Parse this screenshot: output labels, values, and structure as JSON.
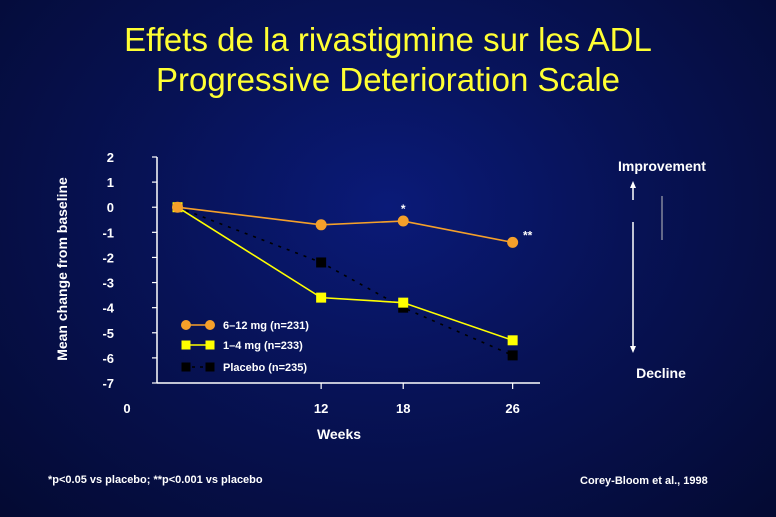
{
  "header": {
    "title_line1": "Effets de la rivastigmine sur les ADL",
    "title_line2": "Progressive Deterioration Scale"
  },
  "colors": {
    "title": "#ffff33",
    "series_high": "#f5a02a",
    "series_low": "#ffff00",
    "series_placebo": "#000000",
    "text": "#ffffff"
  },
  "chart_data": {
    "type": "line",
    "xlabel": "Weeks",
    "ylabel": "Mean change from baseline",
    "x_ticks": [
      "0",
      "12",
      "18",
      "26"
    ],
    "y_ticks": [
      "2",
      "1",
      "0",
      "-1",
      "-2",
      "-3",
      "-4",
      "-5",
      "-6",
      "-7"
    ],
    "xlim": [
      0,
      28
    ],
    "ylim": [
      -7,
      2
    ],
    "grid": false,
    "legend_position": "bottom-left",
    "series": [
      {
        "name": "6–12 mg (n=231)",
        "color": "#f5a02a",
        "marker": "circle",
        "x": [
          1.5,
          12,
          18,
          26
        ],
        "y": [
          0,
          -0.7,
          -0.55,
          -1.4
        ]
      },
      {
        "name": "1–4 mg (n=233)",
        "color": "#ffff00",
        "marker": "square",
        "x": [
          1.5,
          12,
          18,
          26
        ],
        "y": [
          0,
          -3.6,
          -3.8,
          -5.3
        ]
      },
      {
        "name": "Placebo (n=235)",
        "color": "#000000",
        "marker": "square",
        "x": [
          1.5,
          12,
          18,
          26
        ],
        "y": [
          0,
          -2.2,
          -4,
          -5.9
        ]
      }
    ],
    "annotations": [
      {
        "text": "*",
        "x": 18,
        "y": -0.55
      },
      {
        "text": "**",
        "x": 26,
        "y": -1.4
      }
    ],
    "side_labels": {
      "improvement": "Improvement",
      "decline": "Decline"
    }
  },
  "footer": {
    "note": "*p<0.05 vs placebo; **p<0.001 vs placebo",
    "citation": "Corey-Bloom et al., 1998"
  }
}
